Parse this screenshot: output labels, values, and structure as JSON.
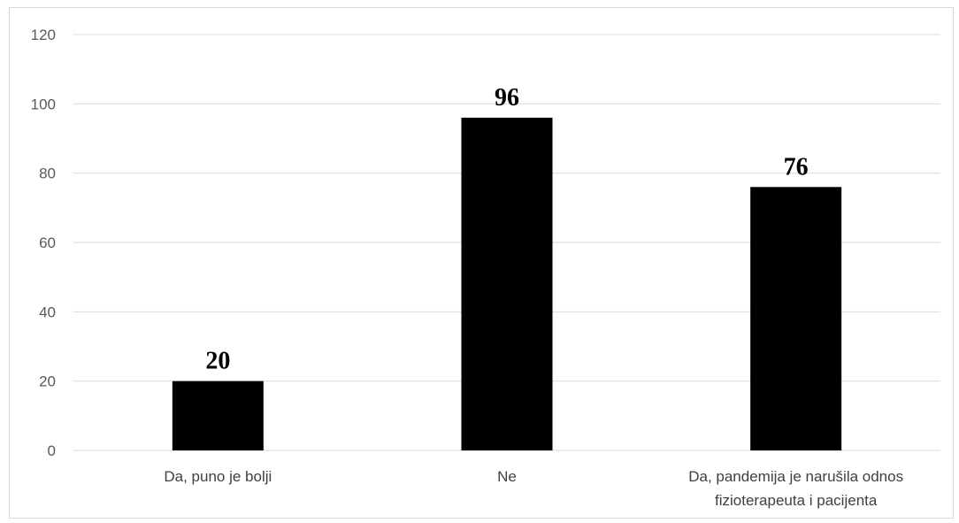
{
  "chart_data": {
    "type": "bar",
    "categories": [
      "Da, puno je bolji",
      "Ne",
      "Da, pandemija je narušila odnos fizioterapeuta i pacijenta"
    ],
    "category_lines": [
      [
        "Da, puno je bolji"
      ],
      [
        "Ne"
      ],
      [
        "Da, pandemija je narušila odnos",
        "fizioterapeuta i pacijenta"
      ]
    ],
    "values": [
      20,
      96,
      76
    ],
    "data_labels": [
      "20",
      "96",
      "76"
    ],
    "yticks": [
      0,
      20,
      40,
      60,
      80,
      100,
      120
    ],
    "ylim": [
      0,
      120
    ],
    "grid": true,
    "legend": "none",
    "colors": {
      "bar": "#000000",
      "grid": "#d9d9d9",
      "tick_text": "#595959",
      "axis": "#d9d9d9"
    }
  }
}
